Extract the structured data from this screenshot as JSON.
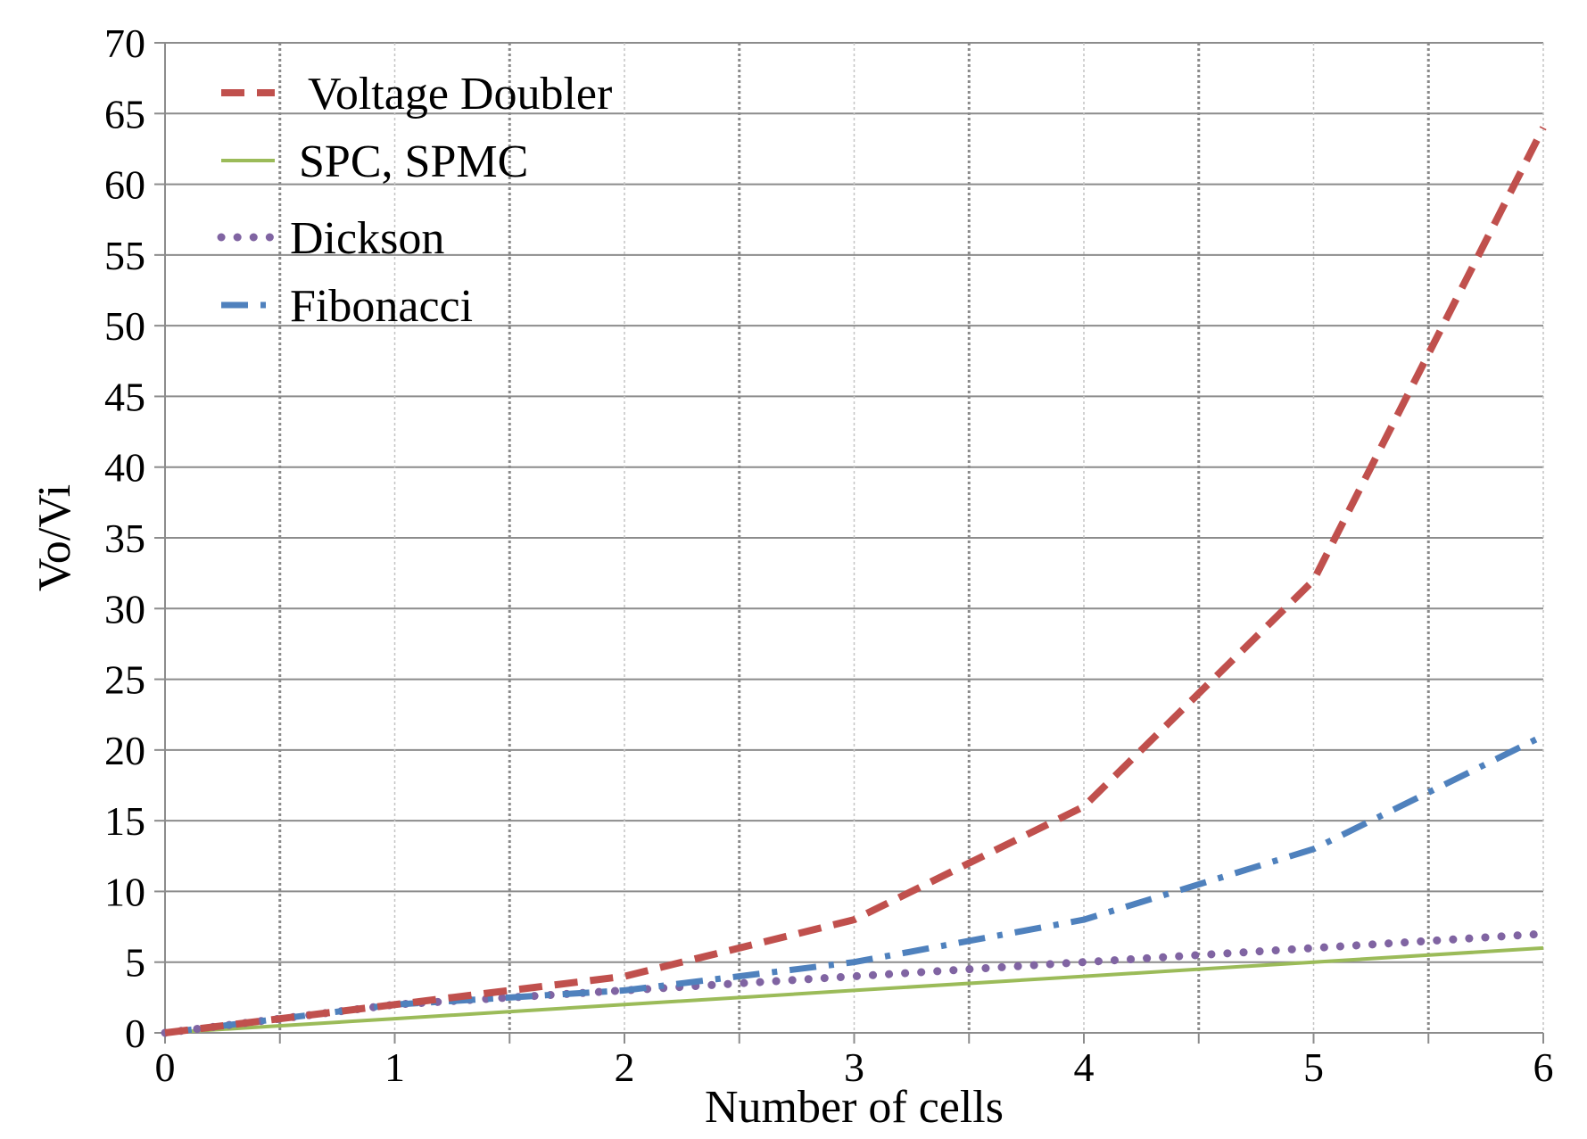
{
  "chart_data": {
    "type": "line",
    "title": "",
    "xlabel": "Number of cells",
    "ylabel": "Vo/Vi",
    "xlim": [
      0,
      6
    ],
    "ylim": [
      0,
      70
    ],
    "x_major_ticks": [
      0,
      1,
      2,
      3,
      4,
      5,
      6
    ],
    "x_minor_gridlines": [
      0.5,
      1.5,
      2.5,
      3.5,
      4.5,
      5.5
    ],
    "y_ticks": [
      0,
      5,
      10,
      15,
      20,
      25,
      30,
      35,
      40,
      45,
      50,
      55,
      60,
      65,
      70
    ],
    "grid": true,
    "legend_position": "top-left",
    "series": [
      {
        "name": "Voltage Doubler",
        "color": "#c0504d",
        "style": "dashed",
        "x": [
          0,
          1,
          2,
          3,
          4,
          5,
          6
        ],
        "y": [
          0,
          2,
          4,
          8,
          16,
          32,
          64
        ]
      },
      {
        "name": "SPC, SPMC",
        "color": "#9bbb59",
        "style": "solid",
        "x": [
          0,
          1,
          2,
          3,
          4,
          5,
          6
        ],
        "y": [
          0,
          1,
          2,
          3,
          4,
          5,
          6
        ]
      },
      {
        "name": "Dickson",
        "color": "#8064a2",
        "style": "dotted",
        "x": [
          0,
          1,
          2,
          3,
          4,
          5,
          6
        ],
        "y": [
          0,
          2,
          3,
          4,
          5,
          6,
          7
        ]
      },
      {
        "name": "Fibonacci",
        "color": "#4f81bd",
        "style": "dash-dot",
        "x": [
          0,
          1,
          2,
          3,
          4,
          5,
          6
        ],
        "y": [
          0,
          2,
          3,
          5,
          8,
          13,
          21
        ]
      }
    ]
  }
}
